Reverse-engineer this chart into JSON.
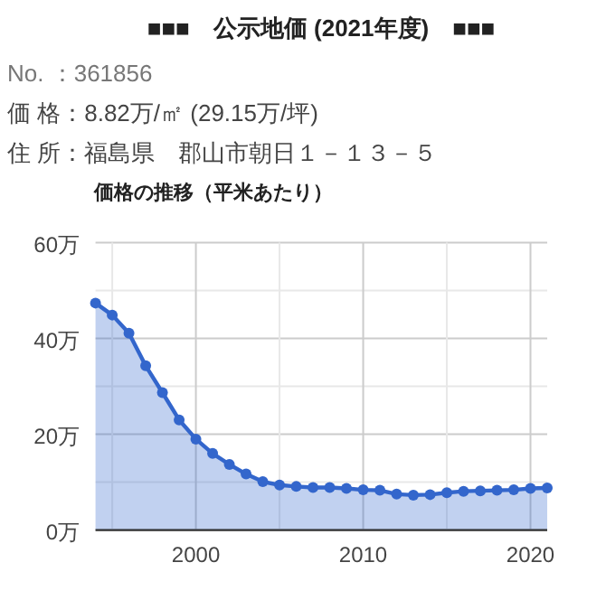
{
  "chart_data": {
    "type": "area",
    "title": "■■■　公示地価 (2021年度)　■■■",
    "subtitle": "価格の推移（平米あたり）",
    "annotations": [
      "No. ：361856",
      "価 格：8.82万/㎡ (29.15万/坪)",
      "住 所：福島県　郡山市朝日１－１３－５"
    ],
    "x": [
      1994,
      1995,
      1996,
      1997,
      1998,
      1999,
      2000,
      2001,
      2002,
      2003,
      2004,
      2005,
      2006,
      2007,
      2008,
      2009,
      2010,
      2011,
      2012,
      2013,
      2014,
      2015,
      2016,
      2017,
      2018,
      2019,
      2020,
      2021
    ],
    "series": [
      {
        "color": "#3366cc",
        "values": [
          47.4,
          44.9,
          41.1,
          34.3,
          28.7,
          23.0,
          19.0,
          16.0,
          13.7,
          11.7,
          10.1,
          9.4,
          9.1,
          8.9,
          8.9,
          8.7,
          8.4,
          8.3,
          7.5,
          7.3,
          7.4,
          7.8,
          8.1,
          8.2,
          8.3,
          8.4,
          8.7,
          8.8
        ]
      }
    ],
    "xlim": [
      1994,
      2021
    ],
    "ylim": [
      0,
      60
    ],
    "xticks": [
      {
        "value": 1995,
        "label": null
      },
      2000,
      {
        "value": 2005,
        "label": null
      },
      2010,
      {
        "value": 2015,
        "label": null
      },
      2020
    ],
    "yticks": [
      {
        "value": 0,
        "label": "0万"
      },
      {
        "value": 10,
        "label": null
      },
      {
        "value": 20,
        "label": "20万"
      },
      {
        "value": 30,
        "label": null
      },
      {
        "value": 40,
        "label": "40万"
      },
      {
        "value": 50,
        "label": null
      },
      {
        "value": 60,
        "label": "60万"
      }
    ],
    "grid": true,
    "marker": "circle"
  }
}
